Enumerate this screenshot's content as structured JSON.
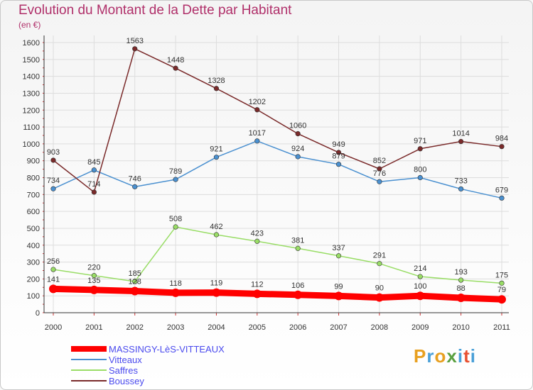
{
  "header": {
    "title": "Evolution du Montant de la Dette par Habitant",
    "unit": "(en €)"
  },
  "logo": {
    "text": "Proxiti"
  },
  "colors": {
    "title": "#b0306a",
    "axis": "#333333",
    "grid": "#dddddd",
    "logo_p": "#e8a020",
    "logo_r": "#4aa0d8",
    "logo_o": "#e8a020",
    "logo_x": "#5aa040",
    "logo_i": "#4aa0d8",
    "logo_t": "#e85030"
  },
  "chart_data": {
    "type": "line",
    "title": "Evolution du Montant de la Dette par Habitant",
    "ylabel": "(en €)",
    "xlabel": "",
    "ylim": [
      0,
      1600
    ],
    "yticks": [
      0,
      100,
      200,
      300,
      400,
      500,
      600,
      700,
      800,
      900,
      1000,
      1100,
      1200,
      1300,
      1400,
      1500,
      1600
    ],
    "categories": [
      "2000",
      "2001",
      "2002",
      "2003",
      "2004",
      "2005",
      "2006",
      "2007",
      "2008",
      "2009",
      "2010",
      "2011"
    ],
    "grid": true,
    "legend_position": "bottom-left",
    "series": [
      {
        "name": "MASSINGY-LèS-VITTEAUX",
        "color": "#ff0000",
        "legend_text_color": "#4a4aee",
        "bold": true,
        "values": [
          141,
          135,
          128,
          118,
          119,
          112,
          106,
          99,
          90,
          100,
          88,
          79
        ],
        "labels": [
          "141",
          "135",
          "128",
          "118",
          "119",
          "112",
          "106",
          "99",
          "90",
          "100",
          "88",
          "79"
        ]
      },
      {
        "name": "Vitteaux",
        "color": "#4a90d0",
        "legend_text_color": "#4a4aee",
        "bold": false,
        "values": [
          734,
          845,
          746,
          789,
          921,
          1017,
          924,
          879,
          776,
          800,
          733,
          679
        ],
        "labels": [
          "734",
          "845",
          "746",
          "789",
          "921",
          "1017",
          "924",
          "879",
          "776",
          "800",
          "733",
          "679"
        ]
      },
      {
        "name": "Saffres",
        "color": "#99dd66",
        "legend_text_color": "#4a4aee",
        "bold": false,
        "values": [
          256,
          220,
          185,
          508,
          462,
          423,
          381,
          337,
          291,
          214,
          193,
          175
        ],
        "labels": [
          "256",
          "220",
          "185",
          "508",
          "462",
          "423",
          "381",
          "337",
          "291",
          "214",
          "193",
          "175"
        ]
      },
      {
        "name": "Boussey",
        "color": "#7a2a2a",
        "legend_text_color": "#4a4aee",
        "bold": false,
        "values": [
          903,
          714,
          1563,
          1448,
          1328,
          1202,
          1060,
          949,
          852,
          971,
          1014,
          984
        ],
        "labels": [
          "903",
          "714",
          "1563",
          "1448",
          "1328",
          "1202",
          "1060",
          "949",
          "852",
          "971",
          "1014",
          "984"
        ]
      }
    ]
  }
}
